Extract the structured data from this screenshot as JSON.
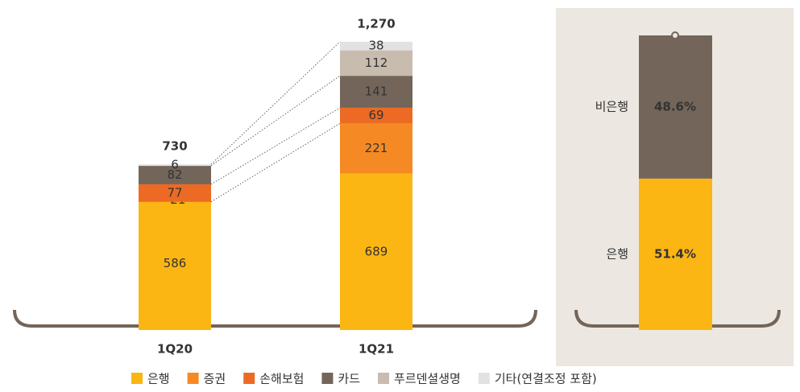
{
  "chart_data": {
    "type": "bar",
    "categories": [
      "1Q20",
      "1Q21"
    ],
    "totals": [
      730,
      1270
    ],
    "total_labels": [
      "730",
      "1,270"
    ],
    "series": [
      {
        "name": "은행",
        "color": "#fbb614",
        "values": [
          586,
          689
        ]
      },
      {
        "name": "증권",
        "color": "#f58a24",
        "values": [
          -21,
          221
        ],
        "value_labels": [
          "–21",
          "221"
        ]
      },
      {
        "name": "손해보험",
        "color": "#ec6a24",
        "values": [
          77,
          69
        ]
      },
      {
        "name": "카드",
        "color": "#736559",
        "values": [
          82,
          141
        ]
      },
      {
        "name": "푸르덴셜생명",
        "color": "#c8bcae",
        "values": [
          null,
          112
        ]
      },
      {
        "name": "기타(연결조정 포함)",
        "color": "#e2e1e3",
        "values": [
          6,
          38
        ]
      }
    ],
    "share": {
      "type": "bar",
      "segments": [
        {
          "name": "은행",
          "value": 51.4,
          "label": "51.4%",
          "color": "#fbb614"
        },
        {
          "name": "비은행",
          "value": 48.6,
          "label": "48.6%",
          "color": "#736559"
        }
      ]
    }
  }
}
